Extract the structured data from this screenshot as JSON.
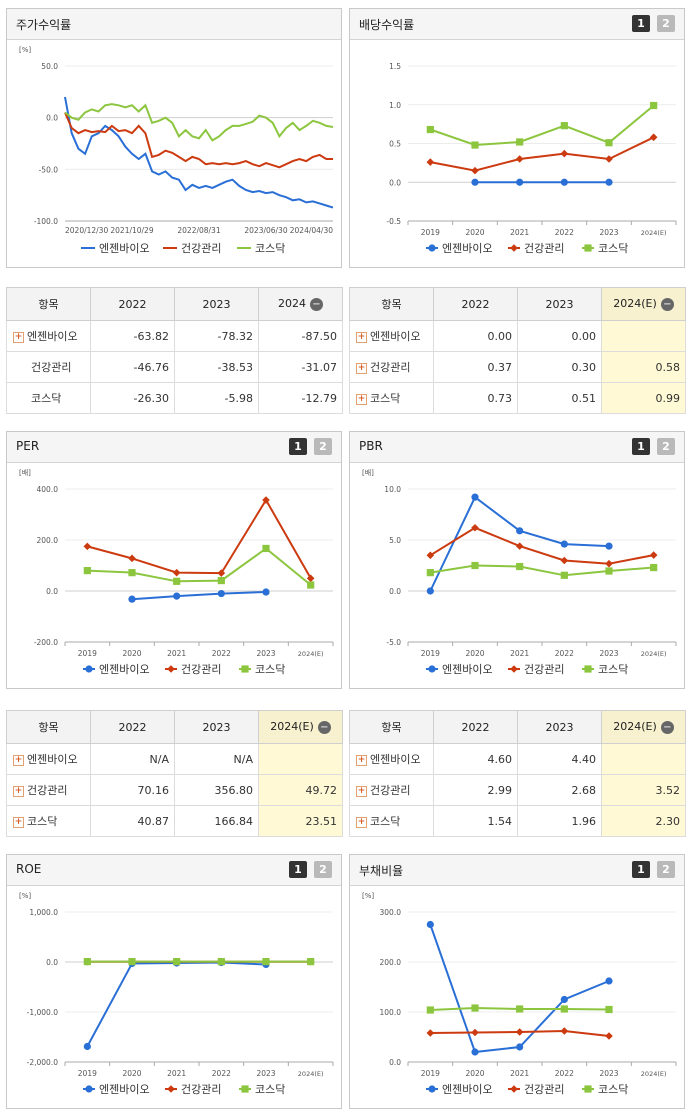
{
  "colors": {
    "s0": "#2a6fd6",
    "s1": "#cc3a10",
    "s2": "#8cc63f"
  },
  "legend_names": [
    "엔젠바이오",
    "건강관리",
    "코스닥"
  ],
  "panels": {
    "stock": {
      "title": "주가수익률"
    },
    "dividend": {
      "title": "배당수익률",
      "btn1": "1",
      "btn2": "2"
    },
    "per": {
      "title": "PER",
      "btn1": "1",
      "btn2": "2"
    },
    "pbr": {
      "title": "PBR",
      "btn1": "1",
      "btn2": "2"
    },
    "roe": {
      "title": "ROE",
      "btn1": "1",
      "btn2": "2"
    },
    "debt": {
      "title": "부채비율",
      "btn1": "1",
      "btn2": "2"
    }
  },
  "tables": {
    "stock": {
      "headers": [
        "항목",
        "2022",
        "2023",
        "2024"
      ],
      "rows": [
        {
          "name": "엔젠바이오",
          "plus": true,
          "values": [
            "-63.82",
            "-78.32",
            "-87.50"
          ]
        },
        {
          "name": "건강관리",
          "plus": false,
          "values": [
            "-46.76",
            "-38.53",
            "-31.07"
          ]
        },
        {
          "name": "코스닥",
          "plus": false,
          "values": [
            "-26.30",
            "-5.98",
            "-12.79"
          ]
        }
      ]
    },
    "dividend": {
      "headers": [
        "항목",
        "2022",
        "2023",
        "2024(E)"
      ],
      "rows": [
        {
          "name": "엔젠바이오",
          "plus": true,
          "values": [
            "0.00",
            "0.00",
            ""
          ]
        },
        {
          "name": "건강관리",
          "plus": true,
          "values": [
            "0.37",
            "0.30",
            "0.58"
          ]
        },
        {
          "name": "코스닥",
          "plus": true,
          "values": [
            "0.73",
            "0.51",
            "0.99"
          ]
        }
      ]
    },
    "per": {
      "headers": [
        "항목",
        "2022",
        "2023",
        "2024(E)"
      ],
      "rows": [
        {
          "name": "엔젠바이오",
          "plus": true,
          "values": [
            "N/A",
            "N/A",
            ""
          ]
        },
        {
          "name": "건강관리",
          "plus": true,
          "values": [
            "70.16",
            "356.80",
            "49.72"
          ]
        },
        {
          "name": "코스닥",
          "plus": true,
          "values": [
            "40.87",
            "166.84",
            "23.51"
          ]
        }
      ]
    },
    "pbr": {
      "headers": [
        "항목",
        "2022",
        "2023",
        "2024(E)"
      ],
      "rows": [
        {
          "name": "엔젠바이오",
          "plus": true,
          "values": [
            "4.60",
            "4.40",
            ""
          ]
        },
        {
          "name": "건강관리",
          "plus": true,
          "values": [
            "2.99",
            "2.68",
            "3.52"
          ]
        },
        {
          "name": "코스닥",
          "plus": true,
          "values": [
            "1.54",
            "1.96",
            "2.30"
          ]
        }
      ]
    }
  },
  "chart_data": [
    {
      "id": "stock",
      "type": "line",
      "unit": "[%]",
      "ylim": [
        -100,
        50
      ],
      "yticks": [
        "50.0",
        "0.0",
        "-50.0",
        "-100.0"
      ],
      "ytick_values": [
        50,
        0,
        -50,
        -100
      ],
      "xticks": [
        "2020/12/30",
        "2021/10/29",
        "2022/08/31",
        "2023/06/30",
        "2024/04/30"
      ],
      "series": [
        {
          "name": "엔젠바이오",
          "values": [
            20,
            -15,
            -30,
            -35,
            -18,
            -15,
            -8,
            -12,
            -18,
            -28,
            -35,
            -40,
            -35,
            -52,
            -55,
            -52,
            -58,
            -60,
            -70,
            -65,
            -68,
            -66,
            -68,
            -65,
            -62,
            -60,
            -66,
            -70,
            -72,
            -71,
            -73,
            -72,
            -75,
            -77,
            -80,
            -79,
            -82,
            -81,
            -83,
            -85,
            -87
          ]
        },
        {
          "name": "건강관리",
          "values": [
            5,
            -10,
            -15,
            -12,
            -14,
            -13,
            -14,
            -8,
            -13,
            -12,
            -15,
            -8,
            -15,
            -38,
            -36,
            -32,
            -34,
            -38,
            -42,
            -38,
            -40,
            -45,
            -44,
            -45,
            -44,
            -45,
            -44,
            -42,
            -45,
            -47,
            -44,
            -46,
            -48,
            -45,
            -42,
            -40,
            -42,
            -38,
            -36,
            -40,
            -40
          ]
        },
        {
          "name": "코스닥",
          "values": [
            5,
            0,
            -2,
            5,
            8,
            6,
            12,
            13,
            12,
            10,
            12,
            6,
            12,
            -5,
            -3,
            0,
            -5,
            -18,
            -12,
            -18,
            -20,
            -12,
            -22,
            -18,
            -12,
            -8,
            -8,
            -6,
            -4,
            2,
            0,
            -5,
            -18,
            -10,
            -5,
            -12,
            -8,
            -3,
            -5,
            -8,
            -9
          ]
        }
      ]
    },
    {
      "id": "dividend",
      "type": "line",
      "unit": "",
      "ylim": [
        -0.5,
        1.5
      ],
      "yticks": [
        "1.5",
        "1.0",
        "0.5",
        "0.0",
        "-0.5"
      ],
      "ytick_values": [
        1.5,
        1.0,
        0.5,
        0.0,
        -0.5
      ],
      "categories": [
        "2019",
        "2020",
        "2021",
        "2022",
        "2023",
        "2024(E)"
      ],
      "series": [
        {
          "name": "엔젠바이오",
          "values": [
            null,
            0.0,
            0.0,
            0.0,
            0.0,
            null
          ]
        },
        {
          "name": "건강관리",
          "values": [
            0.26,
            0.15,
            0.3,
            0.37,
            0.3,
            0.58
          ]
        },
        {
          "name": "코스닥",
          "values": [
            0.68,
            0.48,
            0.52,
            0.73,
            0.51,
            0.99
          ]
        }
      ]
    },
    {
      "id": "per",
      "type": "line",
      "unit": "[배]",
      "ylim": [
        -200,
        400
      ],
      "yticks": [
        "400.0",
        "200.0",
        "0.0",
        "-200.0"
      ],
      "ytick_values": [
        400,
        200,
        0,
        -200
      ],
      "categories": [
        "2019",
        "2020",
        "2021",
        "2022",
        "2023",
        "2024(E)"
      ],
      "series": [
        {
          "name": "엔젠바이오",
          "values": [
            null,
            -32,
            -20,
            -10,
            -4,
            null
          ]
        },
        {
          "name": "건강관리",
          "values": [
            175,
            128,
            72,
            70.16,
            356.8,
            49.72
          ]
        },
        {
          "name": "코스닥",
          "values": [
            80,
            72,
            38,
            40.87,
            166.84,
            23.51
          ]
        }
      ]
    },
    {
      "id": "pbr",
      "type": "line",
      "unit": "[배]",
      "ylim": [
        -5,
        10
      ],
      "yticks": [
        "10.0",
        "5.0",
        "0.0",
        "-5.0"
      ],
      "ytick_values": [
        10,
        5,
        0,
        -5
      ],
      "categories": [
        "2019",
        "2020",
        "2021",
        "2022",
        "2023",
        "2024(E)"
      ],
      "series": [
        {
          "name": "엔젠바이오",
          "values": [
            0.0,
            9.2,
            5.9,
            4.6,
            4.4,
            null
          ]
        },
        {
          "name": "건강관리",
          "values": [
            3.5,
            6.2,
            4.4,
            2.99,
            2.68,
            3.52
          ]
        },
        {
          "name": "코스닥",
          "values": [
            1.8,
            2.5,
            2.4,
            1.54,
            1.96,
            2.3
          ]
        }
      ]
    },
    {
      "id": "roe",
      "type": "line",
      "unit": "[%]",
      "ylim": [
        -2000,
        1000
      ],
      "yticks": [
        "1,000.0",
        "0.0",
        "-1,000.0",
        "-2,000.0"
      ],
      "ytick_values": [
        1000,
        0,
        -1000,
        -2000
      ],
      "categories": [
        "2019",
        "2020",
        "2021",
        "2022",
        "2023",
        "2024(E)"
      ],
      "series": [
        {
          "name": "엔젠바이오",
          "values": [
            -1690,
            -30,
            -20,
            -10,
            -50,
            null
          ]
        },
        {
          "name": "건강관리",
          "values": [
            5,
            5,
            5,
            5,
            5,
            5
          ]
        },
        {
          "name": "코스닥",
          "values": [
            8,
            8,
            8,
            8,
            8,
            8
          ]
        }
      ]
    },
    {
      "id": "debt",
      "type": "line",
      "unit": "[%]",
      "ylim": [
        0,
        300
      ],
      "yticks": [
        "300.0",
        "200.0",
        "100.0",
        "0.0"
      ],
      "ytick_values": [
        300,
        200,
        100,
        0
      ],
      "categories": [
        "2019",
        "2020",
        "2021",
        "2022",
        "2023",
        "2024(E)"
      ],
      "series": [
        {
          "name": "엔젠바이오",
          "values": [
            275,
            20,
            30,
            125,
            162,
            null
          ]
        },
        {
          "name": "건강관리",
          "values": [
            58,
            59,
            60,
            62,
            52,
            null
          ]
        },
        {
          "name": "코스닥",
          "values": [
            104,
            108,
            106,
            106,
            105,
            null
          ]
        }
      ]
    }
  ]
}
